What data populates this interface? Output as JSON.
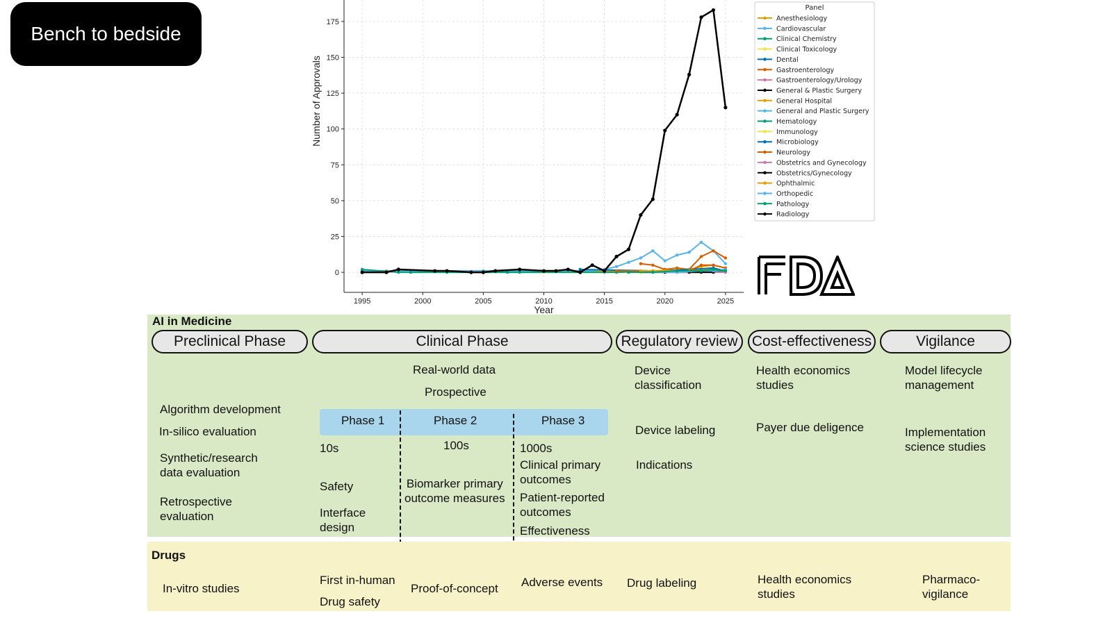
{
  "header": {
    "title": "Bench to bedside"
  },
  "chart_data": {
    "type": "line",
    "xlabel": "Year",
    "ylabel": "Number of Approvals",
    "xlim": [
      1993.5,
      2026.5
    ],
    "ylim": [
      -14,
      190
    ],
    "xticks": [
      1995,
      2000,
      2005,
      2010,
      2015,
      2020,
      2025
    ],
    "yticks": [
      0,
      25,
      50,
      75,
      100,
      125,
      150,
      175
    ],
    "grid": true,
    "legend": {
      "title": "Panel",
      "placement": "top-right"
    },
    "series": [
      {
        "name": "Anesthesiology",
        "color": "#E69F00",
        "x": [
          1997,
          2005,
          2012,
          2018,
          2020,
          2022,
          2024,
          2025
        ],
        "y": [
          1,
          1,
          1,
          1,
          1,
          2,
          2,
          1
        ]
      },
      {
        "name": "Cardiovascular",
        "color": "#56B4E9",
        "x": [
          1995,
          2005,
          2012,
          2013,
          2014,
          2015,
          2016,
          2017,
          2018,
          2019,
          2020,
          2021,
          2022,
          2023,
          2024,
          2025
        ],
        "y": [
          1,
          1,
          1,
          1,
          1,
          2,
          4,
          7,
          10,
          15,
          8,
          12,
          14,
          21,
          15,
          6
        ]
      },
      {
        "name": "Clinical Chemistry",
        "color": "#009E73",
        "x": [
          1995,
          1998,
          2002,
          2008,
          2015,
          2020,
          2022,
          2024
        ],
        "y": [
          2,
          0,
          0,
          0,
          0,
          1,
          1,
          2
        ]
      },
      {
        "name": "Clinical Toxicology",
        "color": "#F0E442",
        "x": [
          2010,
          2020,
          2025
        ],
        "y": [
          0,
          0,
          1
        ]
      },
      {
        "name": "Dental",
        "color": "#0072B2",
        "x": [
          2013,
          2019,
          2021,
          2023,
          2025
        ],
        "y": [
          2,
          1,
          1,
          2,
          1
        ]
      },
      {
        "name": "Gastroenterology",
        "color": "#D55E00",
        "x": [
          2018,
          2019,
          2020,
          2021,
          2022,
          2023,
          2024,
          2025
        ],
        "y": [
          6,
          5,
          2,
          3,
          2,
          11,
          15,
          10
        ]
      },
      {
        "name": "Gastroenterology/Urology",
        "color": "#CC79A7",
        "x": [
          2015,
          2021,
          2023,
          2025
        ],
        "y": [
          0,
          1,
          1,
          1
        ]
      },
      {
        "name": "General & Plastic Surgery",
        "color": "#000000",
        "x": [
          2018,
          2020,
          2023,
          2025
        ],
        "y": [
          0,
          0,
          0,
          1
        ]
      },
      {
        "name": "General Hospital",
        "color": "#E69F00",
        "x": [
          2016,
          2019,
          2022,
          2023,
          2024,
          2025
        ],
        "y": [
          1,
          1,
          2,
          4,
          5,
          3
        ]
      },
      {
        "name": "General and Plastic Surgery",
        "color": "#56B4E9",
        "x": [
          2021,
          2023,
          2025
        ],
        "y": [
          1,
          1,
          2
        ]
      },
      {
        "name": "Hematology",
        "color": "#009E73",
        "x": [
          1999,
          2007,
          2016,
          2020,
          2024,
          2025
        ],
        "y": [
          0,
          0,
          0,
          1,
          1,
          0
        ]
      },
      {
        "name": "Immunology",
        "color": "#F0E442",
        "x": [
          2018,
          2024
        ],
        "y": [
          0,
          1
        ]
      },
      {
        "name": "Microbiology",
        "color": "#0072B2",
        "x": [
          2017,
          2020,
          2024,
          2025
        ],
        "y": [
          0,
          1,
          3,
          1
        ]
      },
      {
        "name": "Neurology",
        "color": "#D55E00",
        "x": [
          2016,
          2018,
          2020,
          2022,
          2023,
          2024,
          2025
        ],
        "y": [
          1,
          1,
          1,
          1,
          5,
          5,
          3
        ]
      },
      {
        "name": "Obstetrics and Gynecology",
        "color": "#CC79A7",
        "x": [
          2021,
          2025
        ],
        "y": [
          0,
          0
        ]
      },
      {
        "name": "Obstetrics/Gynecology",
        "color": "#000000",
        "x": [
          2022,
          2024
        ],
        "y": [
          0,
          0
        ]
      },
      {
        "name": "Ophthalmic",
        "color": "#E69F00",
        "x": [
          2018,
          2020,
          2022,
          2024,
          2025
        ],
        "y": [
          1,
          1,
          1,
          2,
          1
        ]
      },
      {
        "name": "Orthopedic",
        "color": "#56B4E9",
        "x": [
          2019,
          2021,
          2023,
          2024,
          2025
        ],
        "y": [
          0,
          0,
          1,
          1,
          2
        ]
      },
      {
        "name": "Pathology",
        "color": "#009E73",
        "x": [
          2017,
          2019,
          2021,
          2023,
          2024,
          2025
        ],
        "y": [
          0,
          0,
          1,
          1,
          2,
          1
        ]
      },
      {
        "name": "Radiology",
        "color": "#000000",
        "x": [
          1995,
          1997,
          1998,
          2001,
          2002,
          2004,
          2005,
          2006,
          2008,
          2010,
          2011,
          2012,
          2013,
          2014,
          2015,
          2016,
          2017,
          2018,
          2019,
          2020,
          2021,
          2022,
          2023,
          2024,
          2025
        ],
        "y": [
          0,
          0,
          2,
          1,
          1,
          0,
          0,
          1,
          2,
          1,
          1,
          2,
          0,
          5,
          1,
          11,
          16,
          40,
          51,
          99,
          110,
          138,
          178,
          183,
          115
        ]
      }
    ]
  },
  "logo": {
    "text": "FDA"
  },
  "ai": {
    "title": "AI in Medicine",
    "headers": [
      "Preclinical Phase",
      "Clinical Phase",
      "Regulatory review",
      "Cost-effectiveness",
      "Vigilance"
    ],
    "preclinical": [
      "Algorithm development",
      "In-silico evaluation",
      "Synthetic/research\ndata evaluation",
      "Retrospective\n evaluation"
    ],
    "clinical_top": [
      "Real-world data",
      "Prospective"
    ],
    "phases": [
      "Phase 1",
      "Phase 2",
      "Phase 3"
    ],
    "phase1": [
      "10s",
      "Safety",
      "Interface\ndesign"
    ],
    "phase2": [
      "100s",
      "Biomarker primary\noutcome measures"
    ],
    "phase3": [
      "1000s",
      "Clinical primary\noutcomes",
      "Patient-reported\noutcomes",
      "Effectiveness"
    ],
    "regulatory": [
      "Device\nclassification",
      "Device labeling",
      "Indications"
    ],
    "cost": [
      "Health economics\nstudies",
      "Payer due deligence"
    ],
    "vigilance": [
      "Model lifecycle\nmanagement",
      "Implementation\nscience studies"
    ]
  },
  "drugs": {
    "title": "Drugs",
    "preclinical": "In-vitro studies",
    "phase1": [
      "First in-human",
      "Drug safety"
    ],
    "phase2": "Proof-of-concept",
    "phase3": "Adverse events",
    "regulatory": "Drug labeling",
    "cost": "Health economics\nstudies",
    "vigilance": "Pharmaco-\nvigilance"
  }
}
